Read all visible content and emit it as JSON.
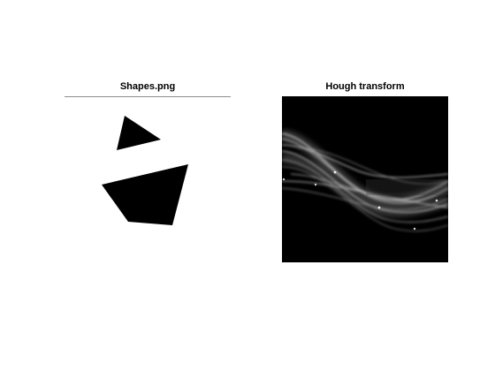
{
  "figure": {
    "background": "#ffffff"
  },
  "left_panel": {
    "title": "Shapes.png",
    "image_background": "#ffffff",
    "shape_color": "#000000",
    "shapes": [
      "triangle",
      "quadrilateral"
    ]
  },
  "right_panel": {
    "title": "Hough transform",
    "image_background": "#000000",
    "curve_color": "#ffffff"
  }
}
